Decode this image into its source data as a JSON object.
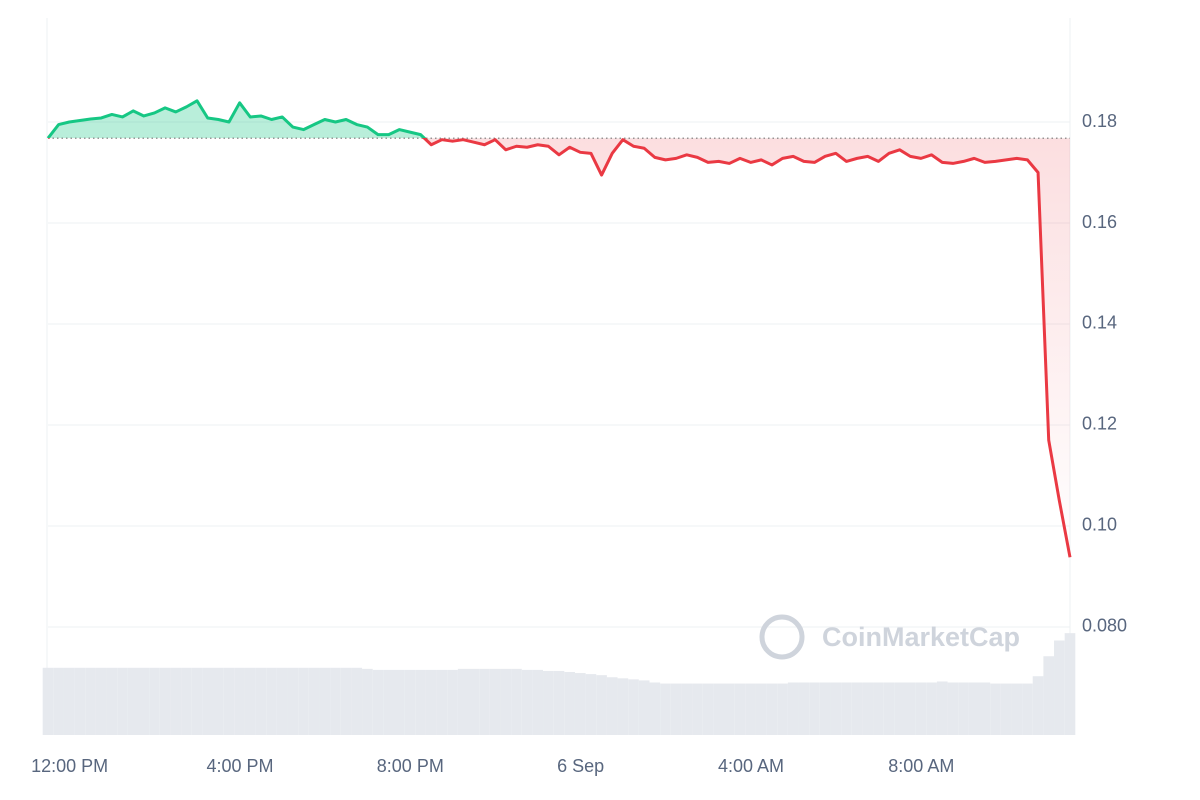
{
  "chart_data": {
    "type": "line",
    "watermark": "CoinMarketCap",
    "categories": [
      null,
      "12:00 PM",
      null,
      null,
      null,
      null,
      null,
      null,
      null,
      null,
      null,
      null,
      null,
      null,
      null,
      null,
      null,
      "4:00 PM",
      null,
      null,
      null,
      null,
      null,
      null,
      null,
      null,
      null,
      null,
      null,
      null,
      null,
      null,
      null,
      "8:00 PM",
      null,
      null,
      null,
      null,
      null,
      null,
      null,
      null,
      null,
      null,
      null,
      null,
      null,
      null,
      null,
      "6 Sep",
      null,
      null,
      null,
      null,
      null,
      null,
      null,
      null,
      null,
      null,
      null,
      null,
      null,
      null,
      null,
      "4:00 AM",
      null,
      null,
      null,
      null,
      null,
      null,
      null,
      null,
      null,
      null,
      null,
      null,
      null,
      null,
      null,
      "8:00 AM",
      null,
      null,
      null,
      null,
      null,
      null,
      null,
      null,
      null,
      null,
      null,
      null,
      null,
      null,
      null
    ],
    "values": [
      0.1768,
      0.1795,
      0.18,
      0.1803,
      0.1806,
      0.1808,
      0.1815,
      0.181,
      0.1822,
      0.1812,
      0.1818,
      0.1828,
      0.182,
      0.183,
      0.1842,
      0.1808,
      0.1805,
      0.18,
      0.1838,
      0.181,
      0.1812,
      0.1805,
      0.181,
      0.179,
      0.1785,
      0.1795,
      0.1805,
      0.18,
      0.1805,
      0.1795,
      0.179,
      0.1775,
      0.1775,
      0.1785,
      0.178,
      0.1775,
      0.1755,
      0.1765,
      0.1762,
      0.1765,
      0.176,
      0.1755,
      0.1765,
      0.1745,
      0.1752,
      0.175,
      0.1755,
      0.1752,
      0.1735,
      0.175,
      0.174,
      0.1738,
      0.1695,
      0.1738,
      0.1765,
      0.1752,
      0.1748,
      0.173,
      0.1725,
      0.1728,
      0.1735,
      0.173,
      0.172,
      0.1722,
      0.1718,
      0.1728,
      0.172,
      0.1725,
      0.1715,
      0.1728,
      0.1732,
      0.1722,
      0.172,
      0.1732,
      0.1738,
      0.1722,
      0.1728,
      0.1732,
      0.1722,
      0.1738,
      0.1745,
      0.1732,
      0.1728,
      0.1735,
      0.172,
      0.1718,
      0.1722,
      0.1728,
      0.172,
      0.1722,
      0.1725,
      0.1728,
      0.1725,
      0.17,
      0.117,
      0.105,
      0.0938
    ],
    "baseline": 0.1768,
    "up_color": "#16c784",
    "down_color": "#ea3943",
    "ylim": [
      0.0586,
      0.2006
    ],
    "yticks": [
      {
        "value": 0.08,
        "label": "0.080"
      },
      {
        "value": 0.1,
        "label": "0.10"
      },
      0.12,
      0.14,
      0.16,
      0.18
    ],
    "grid": true,
    "volume": {
      "color": "#e6e9ee",
      "ylim": [
        0,
        100
      ],
      "values": [
        64,
        64,
        64,
        64,
        64,
        64,
        64,
        64,
        64,
        64,
        64,
        64,
        64,
        64,
        64,
        64,
        64,
        64,
        64,
        64,
        64,
        64,
        64,
        64,
        64,
        64,
        64,
        64,
        64,
        64,
        63,
        62,
        62,
        62,
        62,
        62,
        62,
        62,
        62,
        63,
        63,
        63,
        63,
        63,
        63,
        62,
        62,
        61,
        61,
        60,
        59,
        58,
        57,
        55,
        54,
        53,
        52,
        50,
        49,
        49,
        49,
        49,
        49,
        49,
        49,
        49,
        49,
        49,
        49,
        49,
        50,
        50,
        50,
        50,
        50,
        50,
        50,
        50,
        50,
        50,
        50,
        50,
        50,
        50,
        51,
        50,
        50,
        50,
        50,
        49,
        49,
        49,
        49,
        56,
        75,
        90,
        97
      ]
    }
  }
}
